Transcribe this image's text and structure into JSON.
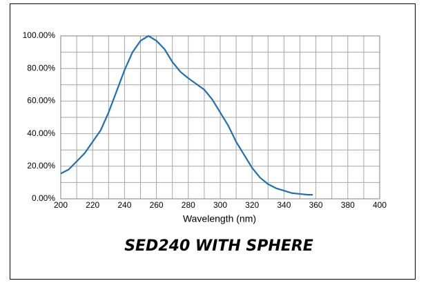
{
  "chart_data": {
    "type": "line",
    "title": "SED240 WITH SPHERE",
    "x_label": "Wavelength (nm)",
    "xlim": [
      200,
      400
    ],
    "xticks": [
      200,
      220,
      240,
      260,
      280,
      300,
      320,
      340,
      360,
      380,
      400
    ],
    "ylim": [
      0,
      100
    ],
    "yticks": [
      {
        "value": 0,
        "label": "0.00%"
      },
      {
        "value": 20,
        "label": "20.00%"
      },
      {
        "value": 40,
        "label": "40.00%"
      },
      {
        "value": 60,
        "label": "60.00%"
      },
      {
        "value": 80,
        "label": "80.00%"
      },
      {
        "value": 100,
        "label": "100.00%"
      }
    ],
    "grid": true,
    "grid_minor_divisions": 2,
    "x": [
      200,
      205,
      210,
      215,
      220,
      225,
      230,
      235,
      240,
      245,
      250,
      255,
      260,
      265,
      270,
      275,
      280,
      285,
      290,
      295,
      300,
      305,
      310,
      315,
      320,
      325,
      330,
      335,
      340,
      345,
      350,
      355,
      358
    ],
    "series": [
      {
        "color": "#1f6fb2",
        "values": [
          15.5,
          18,
          23,
          28,
          35,
          42,
          53,
          66,
          79,
          90,
          97,
          100,
          97,
          92,
          84,
          78,
          74,
          70.5,
          67,
          61,
          53,
          45,
          35,
          27,
          19,
          13,
          9,
          6.5,
          5,
          3.5,
          3,
          2.5,
          2.5
        ]
      }
    ]
  }
}
